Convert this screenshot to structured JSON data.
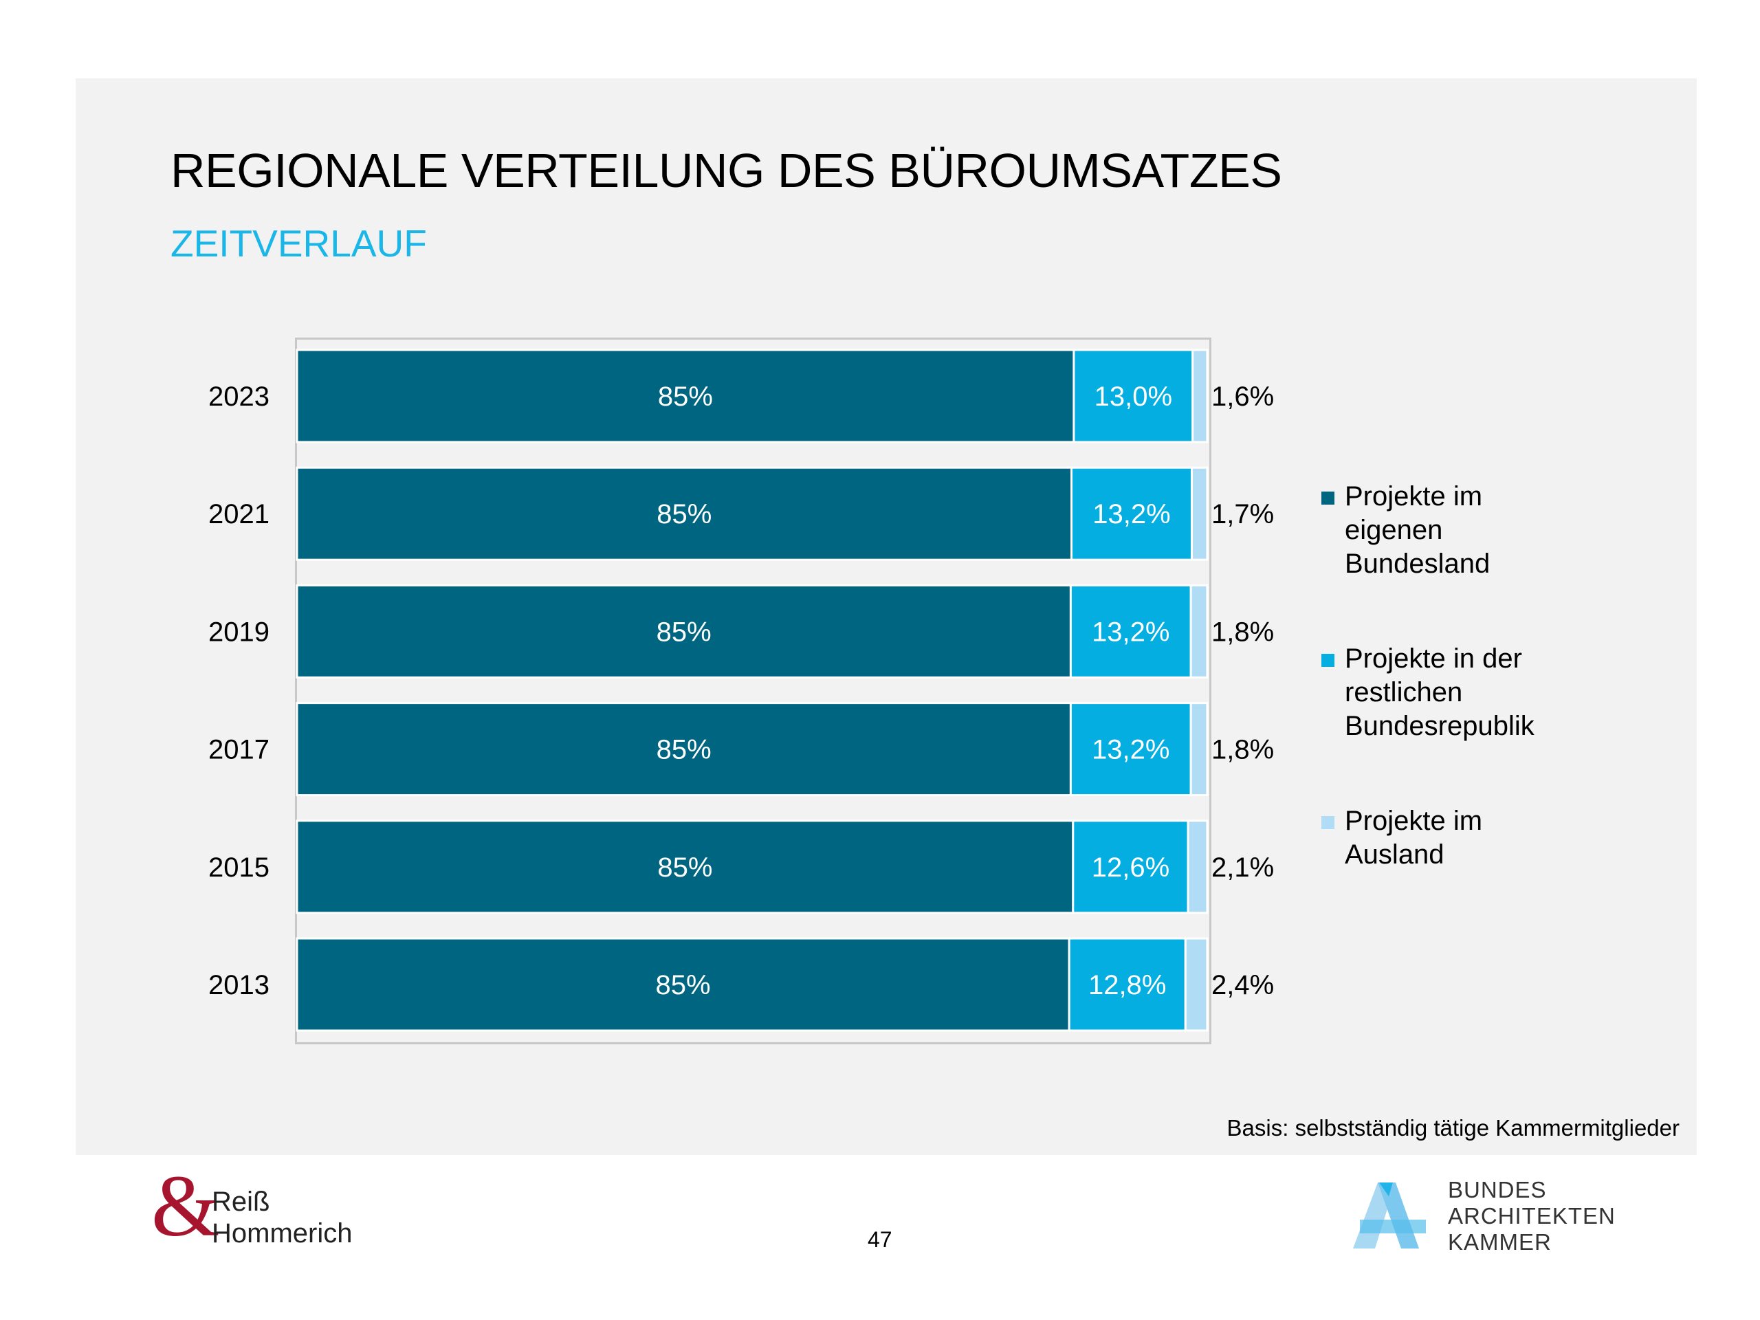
{
  "header": {
    "title": "REGIONALE VERTEILUNG DES BÜROUMSATZES",
    "subtitle": "ZEITVERLAUF"
  },
  "colors": {
    "own_state": "#006580",
    "rest_federal": "#04aee0",
    "abroad": "#b0dcf5",
    "subtitle": "#1ab6e8",
    "panel": "#f2f2f2"
  },
  "chart_data": {
    "type": "bar",
    "orientation": "horizontal",
    "stacked": true,
    "title": "REGIONALE VERTEILUNG DES BÜROUMSATZES",
    "subtitle": "ZEITVERLAUF",
    "xlabel": "",
    "ylabel": "",
    "xlim": [
      0,
      100
    ],
    "grid": false,
    "legend_position": "right",
    "categories": [
      "2023",
      "2021",
      "2019",
      "2017",
      "2015",
      "2013"
    ],
    "series": [
      {
        "name": "Projekte im eigenen Bundesland",
        "color": "#006580",
        "values": [
          85,
          85,
          85,
          85,
          85,
          85
        ],
        "labels": [
          "85%",
          "85%",
          "85%",
          "85%",
          "85%",
          "85%"
        ]
      },
      {
        "name": "Projekte in der restlichen Bundesrepublik",
        "color": "#04aee0",
        "values": [
          13.0,
          13.2,
          13.2,
          13.2,
          12.6,
          12.8
        ],
        "labels": [
          "13,0%",
          "13,2%",
          "13,2%",
          "13,2%",
          "12,6%",
          "12,8%"
        ]
      },
      {
        "name": "Projekte im Ausland",
        "color": "#b0dcf5",
        "values": [
          1.6,
          1.7,
          1.8,
          1.8,
          2.1,
          2.4
        ],
        "labels": [
          "1,6%",
          "1,7%",
          "1,8%",
          "1,8%",
          "2,1%",
          "2,4%"
        ]
      }
    ]
  },
  "legend": [
    {
      "lines": [
        "Projekte im",
        "eigenen",
        "Bundesland"
      ],
      "color": "#006580"
    },
    {
      "lines": [
        "Projekte in der",
        "restlichen",
        "Bundesrepublik"
      ],
      "color": "#04aee0"
    },
    {
      "lines": [
        "Projekte im",
        "Ausland"
      ],
      "color": "#b0dcf5"
    }
  ],
  "footer": {
    "basis": "Basis: selbstständig tätige Kammermitglieder",
    "page_number": "47",
    "logo_left": {
      "symbol": "&",
      "line1": "Reiß",
      "line2": "Hommerich"
    },
    "logo_right": {
      "lines": [
        "BUNDES",
        "ARCHITEKTEN",
        "KAMMER"
      ]
    }
  }
}
